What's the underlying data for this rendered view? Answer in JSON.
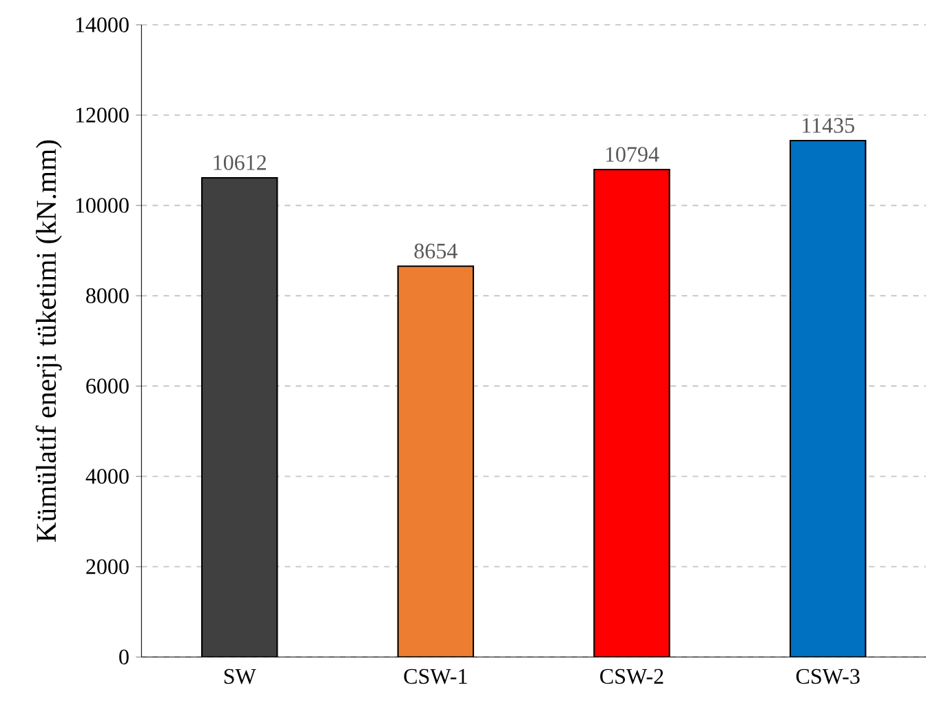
{
  "chart_data": {
    "type": "bar",
    "ylabel": "Kümülatif enerji tüketimi (kN.mm)",
    "categories": [
      "SW",
      "CSW-1",
      "CSW-2",
      "CSW-3"
    ],
    "values": [
      10612,
      8654,
      10794,
      11435
    ],
    "colors": [
      "#404040",
      "#ed7d31",
      "#ff0000",
      "#0070c0"
    ],
    "ylim": [
      0,
      14000
    ],
    "yticks": [
      0,
      2000,
      4000,
      6000,
      8000,
      10000,
      12000,
      14000
    ],
    "grid": "y",
    "data_labels": true
  }
}
